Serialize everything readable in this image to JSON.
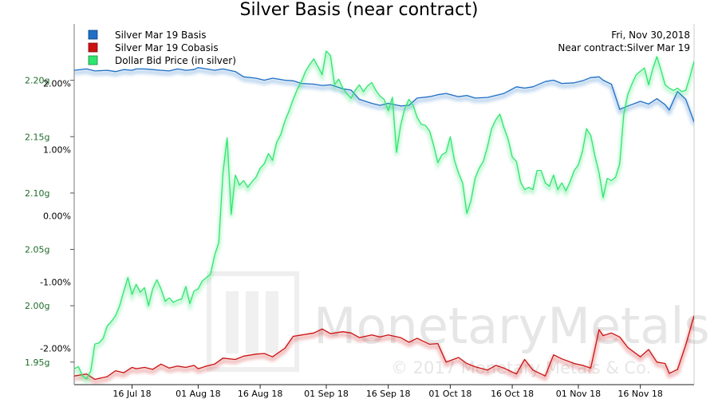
{
  "chart_data": {
    "type": "line",
    "title": "Silver Basis (near contract)",
    "annotation": [
      "Fri, Nov 30,2018",
      "Near contract:Silver Mar 19"
    ],
    "watermark": {
      "brand": "MonetaryMetals",
      "copyright": "© 2017 Monetary Metals & Co."
    },
    "x_ticks": [
      "16 Jul 18",
      "01 Aug 18",
      "16 Aug 18",
      "01 Sep 18",
      "16 Sep 18",
      "01 Oct 18",
      "16 Oct 18",
      "01 Nov 18",
      "16 Nov 18"
    ],
    "y_left": {
      "ticks": [
        "1.95g",
        "2.00g",
        "2.05g",
        "2.10g",
        "2.15g",
        "2.20g"
      ],
      "range": [
        1.93,
        2.25
      ]
    },
    "y_right": {
      "ticks": [
        "-2.00%",
        "-1.00%",
        "0.00%",
        "1.00%",
        "2.00%"
      ],
      "range": [
        -2.55,
        2.9
      ]
    },
    "legend_position": "top-left",
    "series": [
      {
        "name": "Silver Mar 19 Basis",
        "color": "#1f6fc5",
        "axis": "right",
        "x": [
          0,
          3,
          5,
          8,
          10,
          12,
          14,
          15,
          17,
          19,
          21,
          23,
          25,
          27,
          29,
          30,
          32,
          34,
          36,
          39,
          41,
          44,
          46,
          48,
          51,
          53,
          55,
          58,
          60,
          62,
          65,
          67,
          69,
          72,
          74,
          76,
          79,
          81,
          83,
          86,
          88,
          90,
          93,
          95,
          97,
          100,
          102,
          104,
          107,
          109,
          111,
          114,
          116,
          118,
          121,
          123,
          125,
          127,
          128,
          130,
          132,
          134,
          137,
          139,
          141,
          143,
          144,
          146,
          148,
          150
        ],
        "y": [
          2.2,
          2.22,
          2.19,
          2.2,
          2.18,
          2.21,
          2.2,
          2.22,
          2.22,
          2.21,
          2.2,
          2.19,
          2.22,
          2.2,
          2.21,
          2.24,
          2.22,
          2.2,
          2.22,
          2.18,
          2.1,
          2.08,
          2.05,
          2.08,
          2.05,
          2.04,
          2.0,
          1.99,
          1.97,
          1.98,
          1.92,
          1.9,
          1.76,
          1.7,
          1.67,
          1.7,
          1.66,
          1.67,
          1.78,
          1.8,
          1.83,
          1.85,
          1.8,
          1.82,
          1.78,
          1.79,
          1.82,
          1.85,
          1.95,
          1.93,
          1.95,
          2.03,
          2.05,
          2.0,
          2.01,
          2.04,
          2.09,
          2.1,
          2.05,
          1.99,
          1.61,
          1.66,
          1.73,
          1.69,
          1.77,
          1.68,
          1.6,
          1.88,
          1.76,
          1.42
        ]
      },
      {
        "name": "Silver Mar 19 Cobasis",
        "color": "#cc1111",
        "axis": "right",
        "x": [
          0,
          3,
          5,
          8,
          10,
          12,
          14,
          15,
          17,
          19,
          21,
          23,
          25,
          27,
          29,
          30,
          32,
          34,
          36,
          39,
          41,
          44,
          46,
          48,
          51,
          53,
          55,
          58,
          60,
          62,
          65,
          67,
          69,
          72,
          74,
          76,
          79,
          81,
          83,
          86,
          88,
          90,
          93,
          95,
          97,
          100,
          102,
          104,
          107,
          109,
          111,
          114,
          116,
          118,
          121,
          123,
          125,
          127,
          128,
          130,
          132,
          134,
          137,
          139,
          141,
          143,
          144,
          146,
          148,
          150
        ],
        "y": [
          -2.42,
          -2.39,
          -2.47,
          -2.43,
          -2.34,
          -2.37,
          -2.29,
          -2.31,
          -2.29,
          -2.32,
          -2.24,
          -2.3,
          -2.27,
          -2.29,
          -2.26,
          -2.31,
          -2.27,
          -2.24,
          -2.15,
          -2.17,
          -2.12,
          -2.09,
          -2.08,
          -2.13,
          -2.0,
          -1.82,
          -1.8,
          -1.77,
          -1.71,
          -1.78,
          -1.75,
          -1.77,
          -1.84,
          -1.8,
          -1.83,
          -1.8,
          -1.84,
          -1.91,
          -1.85,
          -1.94,
          -1.93,
          -2.21,
          -2.14,
          -2.23,
          -2.28,
          -2.33,
          -2.26,
          -2.3,
          -2.39,
          -2.17,
          -2.33,
          -2.42,
          -2.1,
          -2.16,
          -2.23,
          -2.26,
          -2.3,
          -1.72,
          -1.81,
          -1.77,
          -1.83,
          -1.99,
          -2.13,
          -2.02,
          -2.21,
          -2.23,
          -2.38,
          -2.32,
          -1.95,
          -1.51
        ]
      },
      {
        "name": "Dollar Bid Price (in silver)",
        "color": "#2ee66e",
        "axis": "left",
        "x": [
          0,
          1,
          2,
          3,
          4,
          5,
          6,
          7,
          8,
          9,
          10,
          11,
          12,
          13,
          14,
          15,
          16,
          17,
          18,
          19,
          20,
          21,
          22,
          23,
          24,
          25,
          26,
          27,
          28,
          29,
          30,
          31,
          32,
          33,
          34,
          35,
          36,
          37,
          38,
          39,
          40,
          41,
          42,
          43,
          44,
          45,
          46,
          47,
          48,
          49,
          50,
          51,
          52,
          53,
          54,
          55,
          56,
          57,
          58,
          59,
          60,
          61,
          62,
          63,
          64,
          65,
          66,
          67,
          68,
          69,
          70,
          71,
          72,
          73,
          74,
          75,
          76,
          77,
          78,
          79,
          80,
          81,
          82,
          83,
          84,
          85,
          86,
          87,
          88,
          89,
          90,
          91,
          92,
          93,
          94,
          95,
          96,
          97,
          98,
          99,
          100,
          101,
          102,
          103,
          104,
          105,
          106,
          107,
          108,
          109,
          110,
          111,
          112,
          113,
          114,
          115,
          116,
          117,
          118,
          119,
          120,
          121,
          122,
          123,
          124,
          125,
          126,
          127,
          128,
          129,
          130,
          131,
          132,
          133,
          134,
          135,
          136,
          137,
          138,
          139,
          140,
          141,
          142,
          143,
          144,
          145,
          146,
          147,
          148,
          149,
          150
        ],
        "y": [
          1.944,
          1.946,
          1.938,
          1.935,
          1.942,
          1.966,
          1.967,
          1.971,
          1.982,
          1.986,
          1.991,
          2.0,
          2.013,
          2.025,
          2.01,
          2.019,
          2.012,
          2.016,
          2.0,
          2.015,
          2.023,
          2.015,
          2.004,
          2.007,
          2.003,
          2.005,
          2.006,
          2.017,
          2.002,
          2.013,
          2.015,
          2.022,
          2.025,
          2.028,
          2.045,
          2.056,
          2.118,
          2.149,
          2.081,
          2.116,
          2.107,
          2.111,
          2.105,
          2.11,
          2.114,
          2.122,
          2.126,
          2.135,
          2.129,
          2.145,
          2.152,
          2.164,
          2.173,
          2.183,
          2.192,
          2.199,
          2.208,
          2.214,
          2.219,
          2.212,
          2.205,
          2.226,
          2.222,
          2.196,
          2.201,
          2.193,
          2.188,
          2.184,
          2.191,
          2.196,
          2.19,
          2.195,
          2.198,
          2.191,
          2.186,
          2.183,
          2.173,
          2.185,
          2.136,
          2.16,
          2.175,
          2.183,
          2.178,
          2.167,
          2.161,
          2.16,
          2.155,
          2.142,
          2.127,
          2.134,
          2.136,
          2.15,
          2.129,
          2.118,
          2.109,
          2.082,
          2.093,
          2.113,
          2.122,
          2.128,
          2.141,
          2.157,
          2.165,
          2.17,
          2.158,
          2.148,
          2.132,
          2.128,
          2.11,
          2.103,
          2.105,
          2.103,
          2.12,
          2.12,
          2.109,
          2.106,
          2.116,
          2.103,
          2.109,
          2.102,
          2.11,
          2.12,
          2.125,
          2.137,
          2.157,
          2.151,
          2.133,
          2.118,
          2.096,
          2.113,
          2.111,
          2.114,
          2.126,
          2.17,
          2.188,
          2.197,
          2.205,
          2.208,
          2.211,
          2.196,
          2.21,
          2.221,
          2.209,
          2.196,
          2.193,
          2.191,
          2.193,
          2.19,
          2.191,
          2.203,
          2.217
        ]
      }
    ]
  }
}
